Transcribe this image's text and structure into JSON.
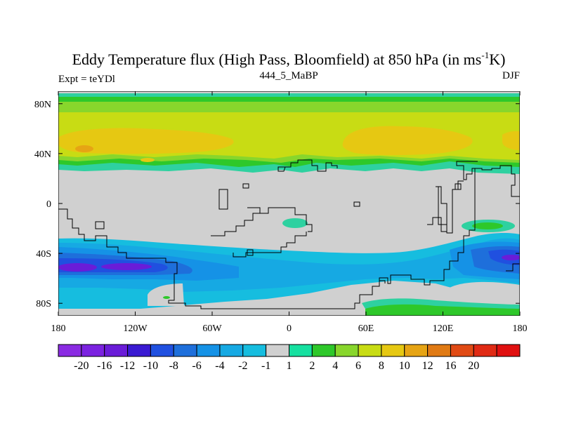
{
  "chart_data": {
    "type": "heatmap",
    "title_prefix": "Eddy Temperature flux (High Pass, Bloomfield) at 850 hPa (in ms",
    "title_superscript": "-1",
    "title_suffix": "K)",
    "subtitle_left": "Expt = teYDl",
    "subtitle_center": "444_5_MaBP",
    "subtitle_right": "DJF",
    "x_range": [
      -180,
      180
    ],
    "y_range": [
      -90,
      90
    ],
    "x_ticks": [
      {
        "value": -180,
        "label": "180"
      },
      {
        "value": -120,
        "label": "120W"
      },
      {
        "value": -60,
        "label": "60W"
      },
      {
        "value": 0,
        "label": "0"
      },
      {
        "value": 60,
        "label": "60E"
      },
      {
        "value": 120,
        "label": "120E"
      },
      {
        "value": 180,
        "label": "180"
      }
    ],
    "y_ticks": [
      {
        "value": 80,
        "label": "80N"
      },
      {
        "value": 40,
        "label": "40N"
      },
      {
        "value": 0,
        "label": "0"
      },
      {
        "value": -40,
        "label": "40S"
      },
      {
        "value": -80,
        "label": "80S"
      }
    ],
    "colorbar": {
      "colors": [
        "#8a2be2",
        "#7b22e0",
        "#6a1cd8",
        "#3a1ad2",
        "#2050e0",
        "#1e6fdb",
        "#1592e6",
        "#16a9e3",
        "#16bddf",
        "#d0d0d0",
        "#16e0a0",
        "#2ec82a",
        "#88d62c",
        "#c8dc14",
        "#e6c812",
        "#e6a414",
        "#e07a14",
        "#e04a14",
        "#e02a14",
        "#e01010"
      ],
      "labels": [
        "-20",
        "-16",
        "-12",
        "-10",
        "-8",
        "-6",
        "-4",
        "-2",
        "-1",
        "1",
        "2",
        "4",
        "6",
        "8",
        "10",
        "12",
        "16",
        "20"
      ]
    }
  }
}
